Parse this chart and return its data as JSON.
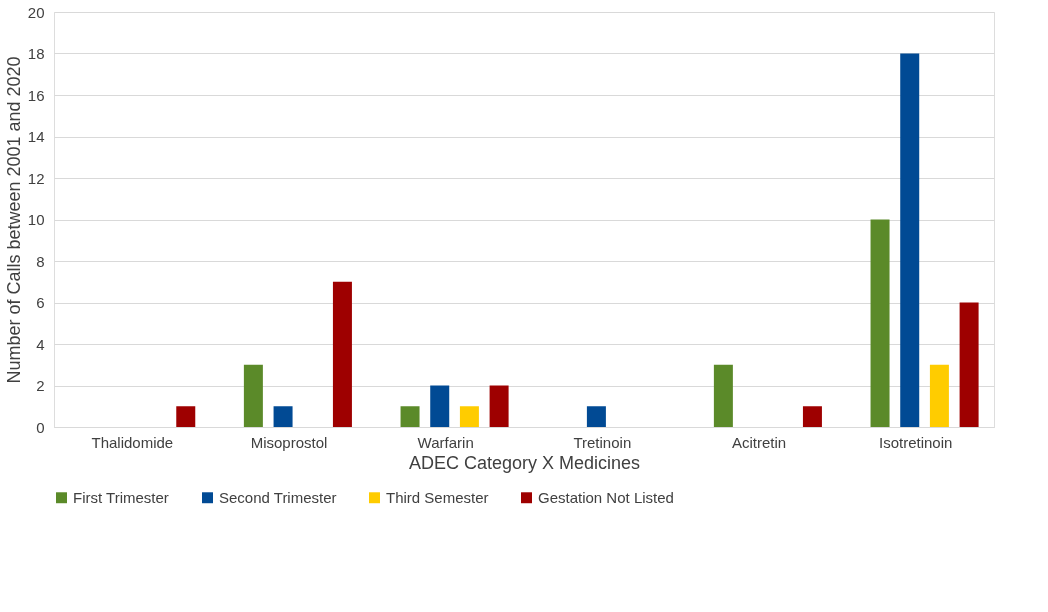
{
  "chart_data": {
    "type": "bar",
    "xlabel": "ADEC Category X Medicines",
    "ylabel": "Number of Calls between 2001 and 2020",
    "categories": [
      "Thalidomide",
      "Misoprostol",
      "Warfarin",
      "Tretinoin",
      "Acitretin",
      "Isotretinoin"
    ],
    "series": [
      {
        "name": "First Trimester",
        "color": "#5b8a29",
        "values": [
          0,
          3,
          1,
          0,
          3,
          10
        ]
      },
      {
        "name": "Second Trimester",
        "color": "#014a94",
        "values": [
          0,
          1,
          2,
          1,
          0,
          18
        ]
      },
      {
        "name": "Third Semester",
        "color": "#ffcc00",
        "values": [
          0,
          0,
          1,
          0,
          0,
          3
        ]
      },
      {
        "name": "Gestation Not Listed",
        "color": "#9e0000",
        "values": [
          1,
          7,
          2,
          0,
          1,
          6
        ]
      }
    ],
    "ylim": [
      0,
      20
    ],
    "yticks": [
      0,
      2,
      4,
      6,
      8,
      10,
      12,
      14,
      16,
      18,
      20
    ],
    "grid": "y",
    "legend": "bottom"
  }
}
